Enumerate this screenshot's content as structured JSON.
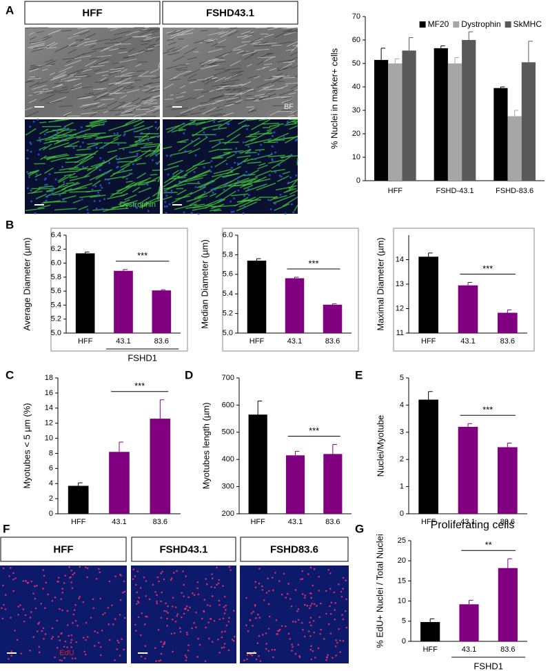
{
  "panel_letters": [
    "A",
    "B",
    "C",
    "D",
    "E",
    "F",
    "G"
  ],
  "micrographs": {
    "A": {
      "headers": [
        "HFF",
        "FSHD43.1"
      ],
      "labels": [
        "BF",
        "Dystrophin"
      ]
    },
    "F": {
      "headers": [
        "HFF",
        "FSHD43.1",
        "FSHD83.6"
      ],
      "label": "EdU"
    }
  },
  "chart_data": [
    {
      "type": "grouped-bar",
      "y_label": "% Nuclei in marker+ cells",
      "categories": [
        "HFF",
        "FSHD-43.1",
        "FSHD-83.6"
      ],
      "series": [
        {
          "name": "MF20",
          "color": "#000000",
          "values": [
            51.5,
            56.5,
            39.5
          ],
          "errors": [
            5,
            1,
            0.5
          ]
        },
        {
          "name": "Dystrophin",
          "color": "#a6a6a6",
          "values": [
            50,
            50,
            27.5
          ],
          "errors": [
            2,
            2.5,
            2.5
          ]
        },
        {
          "name": "SkMHC",
          "color": "#595959",
          "values": [
            55.5,
            60,
            50.5
          ],
          "errors": [
            5.5,
            3.5,
            9
          ]
        }
      ],
      "ylim": [
        0,
        70
      ],
      "yticks": [
        0,
        10,
        20,
        30,
        40,
        50,
        60,
        70
      ],
      "legend": "top-right"
    },
    {
      "type": "bar",
      "y_label": "Average Diameter (µm)",
      "categories": [
        "HFF",
        "43.1",
        "83.6"
      ],
      "values": [
        6.14,
        5.89,
        5.61
      ],
      "errors": [
        0.02,
        0.02,
        0.01
      ],
      "colors": [
        "#000000",
        "#800080",
        "#800080"
      ],
      "ylim": [
        5,
        6.4
      ],
      "yticks": [
        {
          "value": 5,
          "label": "5.0"
        },
        5.2,
        5.4,
        5.6,
        5.8,
        {
          "value": 6,
          "label": "6.0"
        },
        6.2,
        6.4
      ],
      "significance": "***",
      "group_label": "FSHD1"
    },
    {
      "type": "bar",
      "y_label": "Median Diameter (µm)",
      "categories": [
        "HFF",
        "43.1",
        "83.6"
      ],
      "values": [
        5.74,
        5.56,
        5.29
      ],
      "errors": [
        0.02,
        0.01,
        0.01
      ],
      "colors": [
        "#000000",
        "#800080",
        "#800080"
      ],
      "ylim": [
        5,
        6
      ],
      "yticks": [
        {
          "value": 5,
          "label": "5.0"
        },
        5.2,
        5.4,
        5.6,
        5.8,
        {
          "value": 6,
          "label": "6.0"
        }
      ],
      "significance": "***"
    },
    {
      "type": "bar",
      "y_label": "Maximal Diameter (µm)",
      "categories": [
        "HFF",
        "43.1",
        "83.6"
      ],
      "values": [
        14.12,
        12.95,
        11.83
      ],
      "errors": [
        0.15,
        0.12,
        0.12
      ],
      "colors": [
        "#000000",
        "#800080",
        "#800080"
      ],
      "ylim": [
        11,
        15
      ],
      "yticks": [
        11,
        12,
        13,
        14
      ],
      "significance": "***"
    },
    {
      "type": "bar",
      "y_label": "Myotubes < 5 µm (%)",
      "categories": [
        "HFF",
        "43.1",
        "83.6"
      ],
      "values": [
        3.7,
        8.2,
        12.6
      ],
      "errors": [
        0.4,
        1.3,
        2.5
      ],
      "colors": [
        "#000000",
        "#800080",
        "#800080"
      ],
      "ylim": [
        0,
        18
      ],
      "yticks": [
        0,
        2,
        4,
        6,
        8,
        10,
        12,
        14,
        16,
        18
      ],
      "significance": "***"
    },
    {
      "type": "bar",
      "y_label": "Myotubes length (µm)",
      "categories": [
        "HFF",
        "43.1",
        "83.6"
      ],
      "values": [
        565,
        415,
        420
      ],
      "errors": [
        50,
        15,
        35
      ],
      "colors": [
        "#000000",
        "#800080",
        "#800080"
      ],
      "ylim": [
        200,
        700
      ],
      "yticks": [
        200,
        300,
        400,
        500,
        600,
        700
      ],
      "significance": "***"
    },
    {
      "type": "bar",
      "y_label": "Nuclei/Myotube",
      "categories": [
        "HFF",
        "43.1",
        "83.6"
      ],
      "values": [
        4.2,
        3.2,
        2.45
      ],
      "errors": [
        0.3,
        0.12,
        0.15
      ],
      "colors": [
        "#000000",
        "#800080",
        "#800080"
      ],
      "ylim": [
        0,
        5
      ],
      "yticks": [
        0,
        1,
        2,
        3,
        4,
        5
      ],
      "significance": "***"
    },
    {
      "type": "bar",
      "title": "Proliferating cells",
      "y_label": "% EdU+ Nuclei / Total Nuclei",
      "categories": [
        "HFF",
        "43.1",
        "83.6"
      ],
      "values": [
        4.8,
        9.2,
        18.2
      ],
      "errors": [
        0.8,
        1,
        2.3
      ],
      "colors": [
        "#000000",
        "#800080",
        "#800080"
      ],
      "ylim": [
        0,
        25
      ],
      "yticks": [
        0,
        5,
        10,
        15,
        20,
        25
      ],
      "significance": "**",
      "group_label": "FSHD1"
    }
  ]
}
